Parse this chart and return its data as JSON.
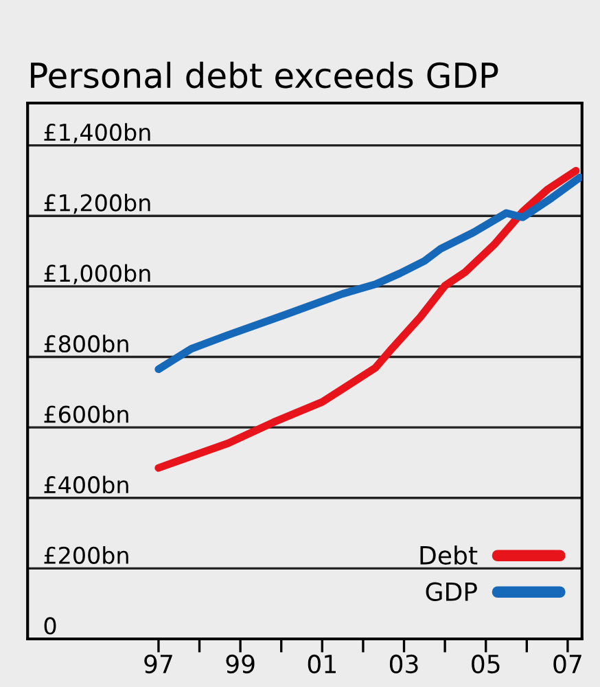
{
  "chart_data": {
    "type": "line",
    "title": "Personal debt exceeds GDP",
    "series": [
      {
        "name": "Debt",
        "color": "#e8141c",
        "x": [
          1997.0,
          1998.7,
          1999.8,
          2001.0,
          2002.3,
          2002.7,
          2003.4,
          2004.0,
          2004.5,
          2005.2,
          2005.9,
          2006.5,
          2007.2
        ],
        "values": [
          485,
          555,
          614,
          672,
          769,
          823,
          913,
          1002,
          1041,
          1118,
          1212,
          1274,
          1328
        ]
      },
      {
        "name": "GDP",
        "color": "#1668b8",
        "x": [
          1997.0,
          1997.8,
          1998.7,
          2000.1,
          2001.5,
          2002.3,
          2002.9,
          2003.5,
          2003.9,
          2004.7,
          2005.5,
          2005.9,
          2006.6,
          2007.3
        ],
        "values": [
          765,
          823,
          862,
          920,
          979,
          1006,
          1037,
          1072,
          1107,
          1153,
          1208,
          1196,
          1250,
          1309
        ]
      }
    ],
    "xlim": [
      1993.8,
      2007.35
    ],
    "xticks": [
      {
        "value": 1997,
        "label": "97"
      },
      {
        "value": 1998,
        "label": null
      },
      {
        "value": 1999,
        "label": "99"
      },
      {
        "value": 2000,
        "label": null
      },
      {
        "value": 2001,
        "label": "01"
      },
      {
        "value": 2002,
        "label": null
      },
      {
        "value": 2003,
        "label": "03"
      },
      {
        "value": 2004,
        "label": null
      },
      {
        "value": 2005,
        "label": "05"
      },
      {
        "value": 2006,
        "label": null
      },
      {
        "value": 2007,
        "label": "07"
      }
    ],
    "ylim": [
      0,
      1520
    ],
    "yticks": [
      {
        "value": 0,
        "label": "0"
      },
      {
        "value": 200,
        "label": "£200bn"
      },
      {
        "value": 400,
        "label": "£400bn"
      },
      {
        "value": 600,
        "label": "£600bn"
      },
      {
        "value": 800,
        "label": "£800bn"
      },
      {
        "value": 1000,
        "label": "£1,000bn"
      },
      {
        "value": 1200,
        "label": "£1,200bn"
      },
      {
        "value": 1400,
        "label": "£1,400bn"
      }
    ],
    "grid": "y",
    "legend": "bottom right",
    "line_style": "solid",
    "marker": "none"
  }
}
